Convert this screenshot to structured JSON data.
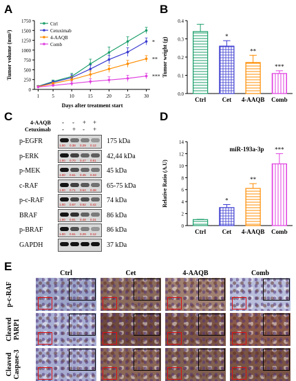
{
  "panels": {
    "A": "A",
    "B": "B",
    "C": "C",
    "D": "D",
    "E": "E"
  },
  "chart_data": [
    {
      "type": "line",
      "x": [
        1,
        5,
        10,
        15,
        20,
        25,
        30
      ],
      "series": [
        {
          "name": "Ctrl",
          "color": "#1a9e6a",
          "values": [
            80,
            200,
            330,
            650,
            940,
            1220,
            1500
          ],
          "err": [
            15,
            40,
            80,
            120,
            140,
            120,
            80
          ]
        },
        {
          "name": "Cetuximab",
          "color": "#3a3ad0",
          "values": [
            75,
            180,
            300,
            520,
            760,
            950,
            1220
          ],
          "err": [
            15,
            40,
            80,
            100,
            110,
            110,
            90
          ]
        },
        {
          "name": "4-AAQB",
          "color": "#ff8c00",
          "values": [
            70,
            150,
            250,
            380,
            520,
            650,
            780
          ],
          "err": [
            15,
            30,
            70,
            90,
            90,
            90,
            80
          ]
        },
        {
          "name": "Comb",
          "color": "#e040e0",
          "values": [
            60,
            100,
            150,
            200,
            240,
            280,
            340
          ],
          "err": [
            10,
            25,
            60,
            70,
            80,
            80,
            70
          ]
        }
      ],
      "xticks": [
        "1",
        "5",
        "10",
        "15",
        "20",
        "25",
        "30"
      ],
      "yticks": [
        "0",
        "250",
        "500",
        "750",
        "1000",
        "1250",
        "1500",
        "1750"
      ],
      "ylim": [
        0,
        1750
      ],
      "xlabel": "Days after treatment start",
      "ylabel": "Tumor volume (mm³)",
      "annotations": [
        "*",
        "**",
        "***"
      ]
    },
    {
      "type": "bar",
      "categories": [
        "Ctrl",
        "Cet",
        "4-AAQB",
        "Comb"
      ],
      "values": [
        0.34,
        0.26,
        0.17,
        0.11
      ],
      "err": [
        0.04,
        0.03,
        0.04,
        0.015
      ],
      "colors": [
        "#1a9e6a",
        "#3a3ad0",
        "#ff8c00",
        "#e040e0"
      ],
      "yticks": [
        "0.0",
        "0.1",
        "0.2",
        "0.3",
        "0.4"
      ],
      "ylim": [
        0,
        0.4
      ],
      "ylabel": "Tumor weight (g)",
      "annotations": [
        "",
        "*",
        "**",
        "***"
      ]
    },
    {
      "type": "bar",
      "title": "miR-193a-3p",
      "categories": [
        "Ctrl",
        "Cet",
        "4-AAQB",
        "Comb"
      ],
      "values": [
        1.0,
        3.0,
        6.2,
        10.3
      ],
      "err": [
        0.05,
        0.5,
        0.8,
        1.7
      ],
      "colors": [
        "#1a9e6a",
        "#3a3ad0",
        "#ff8c00",
        "#e040e0"
      ],
      "yticks": [
        "0",
        "2",
        "4",
        "6",
        "8",
        "10",
        "12",
        "14"
      ],
      "ylim": [
        0,
        14
      ],
      "ylabel": "Relative Ratio (A.U)",
      "annotations": [
        "",
        "*",
        "**",
        "***"
      ]
    }
  ],
  "western": {
    "treat_rows": [
      {
        "label": "4-AAQB",
        "marks": [
          "-",
          "-",
          "+",
          "+"
        ]
      },
      {
        "label": "Cetuximab",
        "marks": [
          "-",
          "+",
          "-",
          "+"
        ]
      }
    ],
    "proteins": [
      {
        "name": "p-EGFR",
        "kda": "175 kDa",
        "quant": [
          "1.00",
          "0.38",
          "0.29",
          "0.12"
        ]
      },
      {
        "name": "p-ERK",
        "kda": "42,44 kDa",
        "quant": [
          "1.00",
          "0.70",
          "0.47",
          "0.51"
        ]
      },
      {
        "name": "p-MEK",
        "kda": "45 kDa",
        "quant": [
          "1.00",
          "0.61",
          "0.45",
          "0.33"
        ]
      },
      {
        "name": "c-RAF",
        "kda": "65-75 kDa",
        "quant": [
          "1.00",
          "0.71",
          "0.54",
          "0.38"
        ]
      },
      {
        "name": "p-c-RAF",
        "kda": "74 kDa",
        "quant": [
          "1.00",
          "0.67",
          "0.62",
          "0.42"
        ]
      },
      {
        "name": "BRAF",
        "kda": "86 kDa",
        "quant": [
          "1.00",
          "0.81",
          "0.48",
          "0.31"
        ]
      },
      {
        "name": "p-BRAF",
        "kda": "86 kDa",
        "quant": [
          "1.00",
          "0.61",
          "0.29",
          "0.12"
        ]
      },
      {
        "name": "GAPDH",
        "kda": "37 kDa",
        "quant": []
      }
    ]
  },
  "ihc": {
    "columns": [
      "Ctrl",
      "Cet",
      "4-AAQB",
      "Comb"
    ],
    "rows": [
      {
        "label1": "p-c-RAF",
        "label2": ""
      },
      {
        "label1": "Cleaved",
        "label2": "PARP1"
      },
      {
        "label1": "Cleaved",
        "label2": "Caspase-3"
      }
    ]
  }
}
